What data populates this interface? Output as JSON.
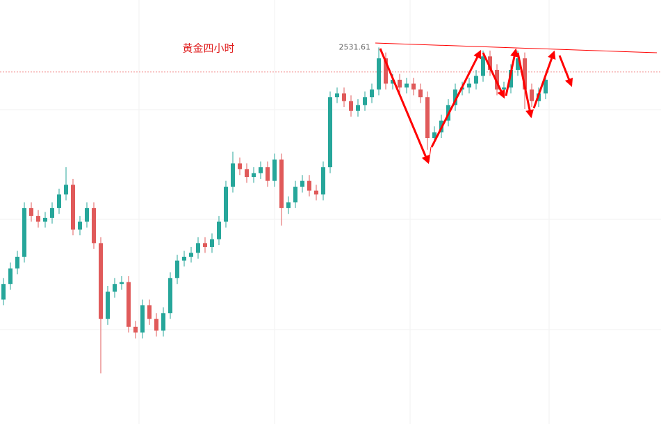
{
  "chart_data": {
    "type": "candlestick",
    "title": "黄金四小时",
    "ylim": [
      2338,
      2556
    ],
    "open": [
      2402,
      2410,
      2418,
      2424,
      2449,
      2445,
      2442,
      2444,
      2449,
      2456,
      2461,
      2438,
      2442,
      2449,
      2431,
      2392,
      2406,
      2410,
      2411,
      2388,
      2385,
      2399,
      2392,
      2386,
      2395,
      2413,
      2422,
      2424,
      2426,
      2431,
      2429,
      2433,
      2442,
      2460,
      2472,
      2469,
      2465,
      2467,
      2470,
      2463,
      2474,
      2449,
      2452,
      2460,
      2463,
      2458,
      2456,
      2470,
      2506,
      2508,
      2504,
      2499,
      2502,
      2506,
      2510,
      2526,
      2513,
      2515,
      2511,
      2513,
      2510,
      2506,
      2485,
      2488,
      2494,
      2502,
      2510,
      2511,
      2513,
      2517,
      2527,
      2520,
      2510,
      2511,
      2520,
      2526,
      2510,
      2504,
      2508
    ],
    "high": [
      2413,
      2421,
      2427,
      2452,
      2452,
      2448,
      2447,
      2452,
      2459,
      2470,
      2464,
      2445,
      2452,
      2452,
      2434,
      2409,
      2413,
      2414,
      2414,
      2391,
      2402,
      2402,
      2395,
      2398,
      2416,
      2425,
      2427,
      2429,
      2434,
      2434,
      2436,
      2445,
      2463,
      2478,
      2475,
      2472,
      2470,
      2473,
      2473,
      2477,
      2477,
      2455,
      2463,
      2466,
      2466,
      2461,
      2473,
      2509,
      2511,
      2511,
      2507,
      2505,
      2509,
      2513,
      2531.61,
      2529,
      2518,
      2518,
      2516,
      2516,
      2513,
      2509,
      2491,
      2497,
      2505,
      2513,
      2514,
      2516,
      2520,
      2530,
      2530,
      2523,
      2514,
      2523,
      2530,
      2529,
      2513,
      2511,
      2518
    ],
    "low": [
      2399,
      2407,
      2415,
      2421,
      2442,
      2439,
      2439,
      2441,
      2446,
      2453,
      2435,
      2435,
      2439,
      2428,
      2364,
      2389,
      2403,
      2407,
      2385,
      2382,
      2382,
      2389,
      2383,
      2383,
      2392,
      2410,
      2419,
      2421,
      2423,
      2426,
      2426,
      2430,
      2439,
      2457,
      2466,
      2462,
      2462,
      2464,
      2460,
      2460,
      2440,
      2446,
      2449,
      2457,
      2455,
      2453,
      2453,
      2467,
      2503,
      2501,
      2496,
      2496,
      2499,
      2503,
      2507,
      2510,
      2510,
      2508,
      2508,
      2507,
      2503,
      2479,
      2482,
      2485,
      2491,
      2499,
      2507,
      2508,
      2510,
      2514,
      2517,
      2507,
      2507,
      2508,
      2517,
      2500,
      2501,
      2501,
      2505
    ],
    "close": [
      2410,
      2418,
      2424,
      2449,
      2445,
      2442,
      2444,
      2449,
      2456,
      2461,
      2438,
      2442,
      2449,
      2431,
      2392,
      2406,
      2410,
      2411,
      2388,
      2385,
      2399,
      2392,
      2386,
      2395,
      2413,
      2422,
      2424,
      2426,
      2431,
      2429,
      2433,
      2442,
      2460,
      2472,
      2469,
      2465,
      2467,
      2470,
      2463,
      2474,
      2449,
      2452,
      2460,
      2463,
      2458,
      2456,
      2470,
      2506,
      2508,
      2504,
      2499,
      2502,
      2506,
      2510,
      2526,
      2513,
      2515,
      2511,
      2513,
      2510,
      2506,
      2485,
      2488,
      2494,
      2502,
      2510,
      2511,
      2513,
      2517,
      2527,
      2520,
      2510,
      2511,
      2520,
      2526,
      2510,
      2504,
      2508,
      2515
    ],
    "up_color": "#26a69a",
    "down_color": "#e05a5a",
    "price_line": 2519
  }
}
